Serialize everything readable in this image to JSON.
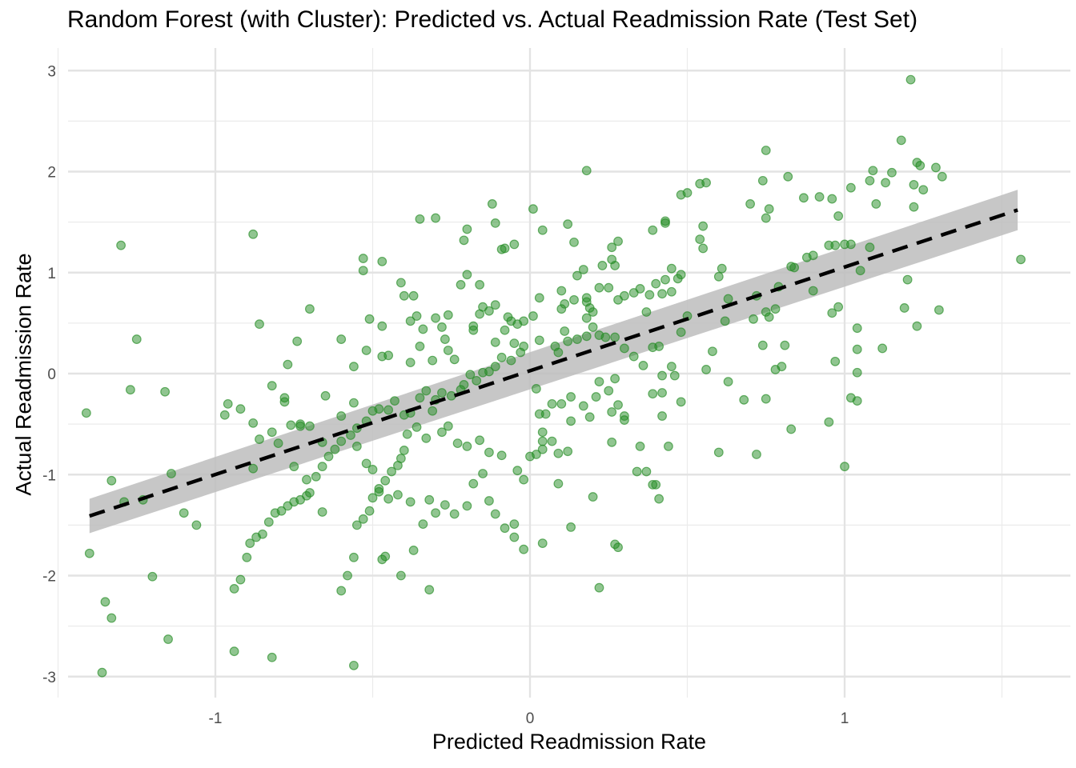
{
  "chart_data": {
    "type": "scatter",
    "title": "Random Forest (with Cluster): Predicted vs. Actual Readmission Rate (Test Set)",
    "xlabel": "Predicted Readmission Rate",
    "ylabel": "Actual Readmission Rate",
    "xlim": [
      -1.5,
      1.6
    ],
    "ylim": [
      -3.2,
      3.2
    ],
    "x_ticks": [
      -1,
      0,
      1
    ],
    "x_tick_labels": [
      "-1",
      "0",
      "1"
    ],
    "y_ticks": [
      -3,
      -2,
      -1,
      0,
      1,
      2,
      3
    ],
    "y_tick_labels": [
      "-3",
      "-2",
      "-1",
      "0",
      "1",
      "2",
      "3"
    ],
    "grid": true,
    "point_color": "#228B22",
    "fit_line": {
      "style": "dashed",
      "color": "#000000",
      "x": [
        -1.4,
        1.55
      ],
      "y": [
        -1.41,
        1.62
      ]
    },
    "confidence_band": {
      "color": "#bdbdbd",
      "lower": [
        -1.58,
        1.42
      ],
      "upper": [
        -1.24,
        1.82
      ]
    },
    "points": [
      [
        -1.3,
        1.27
      ],
      [
        -0.88,
        1.38
      ],
      [
        -0.53,
        1.14
      ],
      [
        -0.53,
        1.02
      ],
      [
        -0.35,
        1.53
      ],
      [
        -0.3,
        1.54
      ],
      [
        -0.2,
        1.43
      ],
      [
        -0.21,
        1.32
      ],
      [
        -0.12,
        1.68
      ],
      [
        -0.11,
        1.49
      ],
      [
        -0.09,
        1.23
      ],
      [
        -0.08,
        1.24
      ],
      [
        -0.05,
        1.28
      ],
      [
        0.01,
        1.63
      ],
      [
        0.04,
        1.42
      ],
      [
        0.12,
        1.48
      ],
      [
        0.14,
        1.3
      ],
      [
        0.18,
        2.01
      ],
      [
        0.26,
        1.25
      ],
      [
        0.28,
        1.31
      ],
      [
        0.43,
        1.49
      ],
      [
        0.43,
        1.51
      ],
      [
        0.39,
        1.42
      ],
      [
        0.48,
        1.77
      ],
      [
        0.5,
        1.79
      ],
      [
        0.54,
        1.88
      ],
      [
        0.56,
        1.89
      ],
      [
        0.55,
        1.46
      ],
      [
        0.54,
        1.33
      ],
      [
        0.55,
        1.24
      ],
      [
        0.7,
        1.68
      ],
      [
        0.75,
        2.21
      ],
      [
        0.75,
        1.54
      ],
      [
        0.76,
        1.63
      ],
      [
        0.74,
        1.91
      ],
      [
        0.82,
        1.95
      ],
      [
        0.87,
        1.74
      ],
      [
        0.92,
        1.75
      ],
      [
        0.96,
        1.73
      ],
      [
        0.98,
        1.56
      ],
      [
        1.02,
        1.84
      ],
      [
        1.08,
        1.91
      ],
      [
        1.09,
        2.01
      ],
      [
        1.13,
        1.89
      ],
      [
        1.15,
        1.99
      ],
      [
        1.18,
        2.31
      ],
      [
        1.21,
        2.91
      ],
      [
        1.23,
        2.09
      ],
      [
        1.24,
        2.06
      ],
      [
        1.22,
        1.87
      ],
      [
        1.25,
        1.82
      ],
      [
        1.29,
        2.04
      ],
      [
        1.31,
        1.95
      ],
      [
        1.22,
        1.65
      ],
      [
        1.1,
        1.68
      ],
      [
        1.56,
        1.13
      ],
      [
        0.95,
        1.27
      ],
      [
        1.0,
        1.28
      ],
      [
        1.02,
        1.28
      ],
      [
        0.97,
        1.27
      ],
      [
        1.08,
        1.25
      ],
      [
        1.05,
        1.02
      ],
      [
        1.2,
        0.93
      ],
      [
        1.19,
        0.65
      ],
      [
        1.3,
        0.63
      ],
      [
        1.23,
        0.47
      ],
      [
        1.12,
        0.25
      ],
      [
        1.04,
        0.45
      ],
      [
        1.04,
        0.24
      ],
      [
        1.04,
        0.01
      ],
      [
        1.04,
        -0.27
      ],
      [
        1.02,
        -0.24
      ],
      [
        1.0,
        -0.92
      ],
      [
        0.95,
        -0.48
      ],
      [
        0.97,
        0.12
      ],
      [
        0.98,
        0.66
      ],
      [
        0.96,
        0.6
      ],
      [
        0.9,
        0.82
      ],
      [
        0.88,
        1.15
      ],
      [
        0.9,
        1.17
      ],
      [
        0.83,
        1.06
      ],
      [
        0.84,
        1.05
      ],
      [
        0.79,
        0.86
      ],
      [
        0.76,
        0.56
      ],
      [
        0.78,
        0.64
      ],
      [
        0.78,
        0.04
      ],
      [
        0.8,
        0.07
      ],
      [
        0.81,
        0.28
      ],
      [
        0.74,
        0.28
      ],
      [
        0.75,
        0.61
      ],
      [
        0.72,
        0.77
      ],
      [
        0.71,
        0.54
      ],
      [
        0.63,
        0.74
      ],
      [
        0.62,
        0.52
      ],
      [
        0.6,
        0.96
      ],
      [
        0.61,
        1.04
      ],
      [
        0.56,
        0.04
      ],
      [
        0.58,
        0.22
      ],
      [
        0.6,
        -0.78
      ],
      [
        0.63,
        -0.08
      ],
      [
        0.68,
        -0.26
      ],
      [
        0.72,
        -0.8
      ],
      [
        0.75,
        -0.25
      ],
      [
        0.83,
        -0.55
      ],
      [
        0.5,
        0.57
      ],
      [
        0.48,
        0.41
      ],
      [
        0.45,
        0.81
      ],
      [
        0.47,
        0.94
      ],
      [
        0.45,
        1.04
      ],
      [
        0.48,
        0.98
      ],
      [
        0.43,
        0.93
      ],
      [
        0.42,
        0.79
      ],
      [
        0.38,
        0.78
      ],
      [
        0.35,
        0.84
      ],
      [
        0.4,
        0.89
      ],
      [
        0.37,
        0.61
      ],
      [
        0.33,
        0.8
      ],
      [
        0.3,
        0.77
      ],
      [
        0.28,
        0.73
      ],
      [
        0.27,
        1.07
      ],
      [
        0.26,
        1.13
      ],
      [
        0.25,
        0.85
      ],
      [
        0.23,
        1.07
      ],
      [
        0.22,
        0.85
      ],
      [
        0.2,
        0.61
      ],
      [
        0.18,
        0.55
      ],
      [
        0.18,
        0.71
      ],
      [
        0.18,
        0.75
      ],
      [
        0.19,
        0.65
      ],
      [
        0.17,
        1.03
      ],
      [
        0.15,
        0.97
      ],
      [
        0.14,
        0.73
      ],
      [
        0.1,
        0.82
      ],
      [
        0.11,
        0.69
      ],
      [
        0.1,
        0.64
      ],
      [
        0.03,
        0.75
      ],
      [
        0.01,
        0.57
      ],
      [
        -0.02,
        0.52
      ],
      [
        -0.06,
        0.52
      ],
      [
        -0.07,
        0.56
      ],
      [
        -0.04,
        0.49
      ],
      [
        -0.11,
        0.68
      ],
      [
        -0.13,
        0.62
      ],
      [
        -0.15,
        0.66
      ],
      [
        -0.16,
        0.59
      ],
      [
        -0.18,
        0.47
      ],
      [
        -0.22,
        0.88
      ],
      [
        -0.2,
        0.98
      ],
      [
        -0.16,
        0.88
      ],
      [
        -0.26,
        0.58
      ],
      [
        -0.28,
        0.46
      ],
      [
        -0.3,
        0.55
      ],
      [
        -0.34,
        0.44
      ],
      [
        -0.36,
        0.57
      ],
      [
        -0.37,
        0.77
      ],
      [
        -0.41,
        0.9
      ],
      [
        -0.4,
        0.77
      ],
      [
        -0.38,
        0.52
      ],
      [
        -0.47,
        0.47
      ],
      [
        -0.51,
        0.54
      ],
      [
        -0.47,
        1.11
      ],
      [
        -0.52,
        0.23
      ],
      [
        -0.56,
        0.07
      ],
      [
        -0.6,
        0.34
      ],
      [
        -0.7,
        0.64
      ],
      [
        -0.74,
        0.32
      ],
      [
        -0.86,
        0.49
      ],
      [
        -0.47,
        0.17
      ],
      [
        -0.45,
        0.18
      ],
      [
        -0.38,
        0.11
      ],
      [
        -0.35,
        0.27
      ],
      [
        -0.31,
        0.13
      ],
      [
        -0.27,
        0.34
      ],
      [
        -0.26,
        0.23
      ],
      [
        -0.24,
        0.14
      ],
      [
        -0.18,
        0.43
      ],
      [
        -0.11,
        0.31
      ],
      [
        -0.08,
        0.43
      ],
      [
        -0.05,
        0.3
      ],
      [
        -0.02,
        0.27
      ],
      [
        0.03,
        0.33
      ],
      [
        0.08,
        0.27
      ],
      [
        0.09,
        0.21
      ],
      [
        0.11,
        0.42
      ],
      [
        0.12,
        0.32
      ],
      [
        0.15,
        0.34
      ],
      [
        0.18,
        0.37
      ],
      [
        0.2,
        0.46
      ],
      [
        0.22,
        0.38
      ],
      [
        0.24,
        0.36
      ],
      [
        0.27,
        0.36
      ],
      [
        0.3,
        0.25
      ],
      [
        0.33,
        0.17
      ],
      [
        0.36,
        0.08
      ],
      [
        0.39,
        0.26
      ],
      [
        0.41,
        0.27
      ],
      [
        0.45,
        0.07
      ],
      [
        0.46,
        -0.02
      ],
      [
        0.48,
        -0.28
      ],
      [
        0.44,
        -0.72
      ],
      [
        0.37,
        -0.97
      ],
      [
        0.4,
        -1.1
      ],
      [
        0.39,
        -1.1
      ],
      [
        0.41,
        -1.24
      ],
      [
        0.35,
        -0.72
      ],
      [
        0.3,
        -0.42
      ],
      [
        0.26,
        -0.38
      ],
      [
        0.25,
        -0.17
      ],
      [
        0.27,
        -0.05
      ],
      [
        0.28,
        -0.31
      ],
      [
        0.22,
        -0.08
      ],
      [
        0.21,
        -0.23
      ],
      [
        0.17,
        -0.32
      ],
      [
        0.19,
        -0.43
      ],
      [
        0.13,
        -0.23
      ],
      [
        0.13,
        -0.47
      ],
      [
        0.1,
        -0.3
      ],
      [
        0.07,
        -0.3
      ],
      [
        0.05,
        -0.4
      ],
      [
        0.03,
        -0.4
      ],
      [
        0.04,
        -0.58
      ],
      [
        0.04,
        -0.67
      ],
      [
        0.04,
        -0.75
      ],
      [
        0.02,
        -0.8
      ],
      [
        0.07,
        -0.67
      ],
      [
        0.09,
        -0.79
      ],
      [
        0.12,
        -0.77
      ],
      [
        0.09,
        -1.09
      ],
      [
        0.13,
        -1.52
      ],
      [
        0.2,
        -1.22
      ],
      [
        0.22,
        -2.12
      ],
      [
        0.27,
        -1.69
      ],
      [
        0.28,
        -1.72
      ],
      [
        0.26,
        -0.68
      ],
      [
        0.3,
        -0.46
      ],
      [
        0.34,
        -0.97
      ],
      [
        0.42,
        -0.02
      ],
      [
        0.42,
        -0.19
      ],
      [
        0.39,
        -0.2
      ],
      [
        0.42,
        -0.42
      ],
      [
        0.02,
        -0.15
      ],
      [
        -0.03,
        0.21
      ],
      [
        -0.06,
        0.13
      ],
      [
        -0.09,
        0.16
      ],
      [
        -0.11,
        0.07
      ],
      [
        -0.13,
        0.02
      ],
      [
        -0.15,
        0.01
      ],
      [
        -0.17,
        -0.07
      ],
      [
        -0.19,
        -0.01
      ],
      [
        -0.21,
        -0.11
      ],
      [
        -0.22,
        -0.16
      ],
      [
        -0.25,
        -0.22
      ],
      [
        -0.28,
        -0.19
      ],
      [
        -0.3,
        -0.26
      ],
      [
        -0.33,
        -0.17
      ],
      [
        -0.35,
        -0.24
      ],
      [
        -0.38,
        -0.39
      ],
      [
        -0.4,
        -0.41
      ],
      [
        -0.43,
        -0.27
      ],
      [
        -0.45,
        -0.36
      ],
      [
        -0.48,
        -0.35
      ],
      [
        -0.5,
        -0.37
      ],
      [
        -0.52,
        -0.47
      ],
      [
        -0.55,
        -0.54
      ],
      [
        -0.57,
        -0.61
      ],
      [
        -0.6,
        -0.67
      ],
      [
        -0.62,
        -0.75
      ],
      [
        -0.64,
        -0.82
      ],
      [
        -0.66,
        -0.92
      ],
      [
        -0.68,
        -1.02
      ],
      [
        -0.7,
        -1.18
      ],
      [
        -0.71,
        -1.21
      ],
      [
        -0.73,
        -1.25
      ],
      [
        -0.75,
        -1.27
      ],
      [
        -0.77,
        -1.31
      ],
      [
        -0.79,
        -1.36
      ],
      [
        -0.81,
        -1.38
      ],
      [
        -0.83,
        -1.47
      ],
      [
        -0.85,
        -1.59
      ],
      [
        -0.87,
        -1.62
      ],
      [
        -0.89,
        -1.68
      ],
      [
        -0.9,
        -1.82
      ],
      [
        -0.92,
        -2.04
      ],
      [
        -0.94,
        -2.13
      ],
      [
        -0.88,
        -0.49
      ],
      [
        -0.86,
        -0.65
      ],
      [
        -0.82,
        -0.12
      ],
      [
        -0.78,
        -0.24
      ],
      [
        -0.78,
        -0.28
      ],
      [
        -0.77,
        0.09
      ],
      [
        -0.73,
        -0.5
      ],
      [
        -0.73,
        -0.52
      ],
      [
        -0.7,
        -0.52
      ],
      [
        -0.66,
        -0.68
      ],
      [
        -0.65,
        -0.22
      ],
      [
        -0.6,
        -0.42
      ],
      [
        -0.56,
        -0.29
      ],
      [
        -0.55,
        -0.72
      ],
      [
        -0.52,
        -0.89
      ],
      [
        -0.5,
        -0.95
      ],
      [
        -0.48,
        -1.14
      ],
      [
        -0.45,
        -1.24
      ],
      [
        -0.42,
        -1.2
      ],
      [
        -0.38,
        -1.27
      ],
      [
        -0.34,
        -1.49
      ],
      [
        -0.32,
        -1.25
      ],
      [
        -0.3,
        -1.38
      ],
      [
        -0.27,
        -1.3
      ],
      [
        -0.24,
        -1.39
      ],
      [
        -0.2,
        -1.31
      ],
      [
        -0.18,
        -1.09
      ],
      [
        -0.15,
        -0.99
      ],
      [
        -0.13,
        -1.26
      ],
      [
        -0.11,
        -1.39
      ],
      [
        -0.08,
        -1.53
      ],
      [
        -0.05,
        -1.49
      ],
      [
        -0.02,
        -1.05
      ],
      [
        0.0,
        -0.82
      ],
      [
        -0.04,
        -0.96
      ],
      [
        -0.09,
        -0.81
      ],
      [
        -0.13,
        -0.78
      ],
      [
        -0.16,
        -0.66
      ],
      [
        -0.2,
        -0.72
      ],
      [
        -0.23,
        -0.69
      ],
      [
        -0.26,
        -0.52
      ],
      [
        -0.28,
        -0.58
      ],
      [
        -0.31,
        -0.37
      ],
      [
        -0.33,
        -0.64
      ],
      [
        -0.36,
        -0.53
      ],
      [
        -0.39,
        -0.6
      ],
      [
        -0.4,
        -0.76
      ],
      [
        -0.41,
        -0.84
      ],
      [
        -0.42,
        -0.91
      ],
      [
        -0.44,
        -0.97
      ],
      [
        -0.46,
        -1.06
      ],
      [
        -0.48,
        -1.17
      ],
      [
        -0.5,
        -1.23
      ],
      [
        -0.51,
        -1.36
      ],
      [
        -0.53,
        -1.44
      ],
      [
        -0.55,
        -1.5
      ],
      [
        -0.56,
        -1.82
      ],
      [
        -0.58,
        -2.0
      ],
      [
        -0.6,
        -2.15
      ],
      [
        -0.66,
        -1.37
      ],
      [
        -0.71,
        -1.05
      ],
      [
        -0.75,
        -0.92
      ],
      [
        -0.76,
        -0.51
      ],
      [
        -0.8,
        -0.69
      ],
      [
        -0.82,
        -0.58
      ],
      [
        -0.88,
        -0.94
      ],
      [
        -0.92,
        -0.35
      ],
      [
        -0.96,
        -0.3
      ],
      [
        -0.97,
        -0.41
      ],
      [
        -1.06,
        -1.5
      ],
      [
        -1.1,
        -1.38
      ],
      [
        -1.14,
        -0.99
      ],
      [
        -1.16,
        -0.18
      ],
      [
        -1.2,
        -2.01
      ],
      [
        -1.23,
        -1.25
      ],
      [
        -1.25,
        0.34
      ],
      [
        -1.27,
        -0.16
      ],
      [
        -1.29,
        -1.27
      ],
      [
        -1.33,
        -1.06
      ],
      [
        -1.35,
        -2.26
      ],
      [
        -1.33,
        -2.42
      ],
      [
        -1.36,
        -2.96
      ],
      [
        -1.4,
        -1.78
      ],
      [
        -1.41,
        -0.39
      ],
      [
        -1.15,
        -2.63
      ],
      [
        -0.94,
        -2.75
      ],
      [
        -0.82,
        -2.81
      ],
      [
        -0.56,
        -2.89
      ],
      [
        -0.47,
        -1.84
      ],
      [
        -0.46,
        -1.81
      ],
      [
        -0.41,
        -2.0
      ],
      [
        -0.37,
        -1.75
      ],
      [
        -0.32,
        -2.14
      ],
      [
        -0.02,
        -1.74
      ],
      [
        -0.05,
        -1.62
      ],
      [
        0.04,
        -1.68
      ]
    ]
  }
}
